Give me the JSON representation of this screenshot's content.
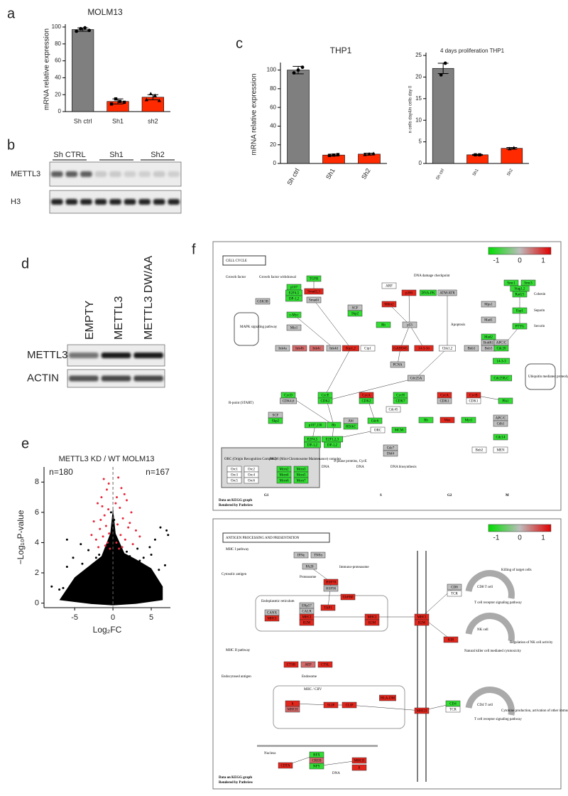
{
  "panel_labels": [
    "a",
    "b",
    "c",
    "d",
    "e",
    "f"
  ],
  "chart_data": [
    {
      "type": "bar",
      "title": "MOLM13",
      "y_label": "mRNA relative expression",
      "categories": [
        "Sh ctrl",
        "Sh1",
        "sh2"
      ],
      "values": [
        97,
        12,
        17
      ],
      "errors": [
        2,
        3,
        3
      ],
      "colors": [
        "#7f7f7f",
        "#ff2a00",
        "#ff2a00"
      ],
      "points": [
        [
          95,
          98,
          99,
          96
        ],
        [
          9,
          15,
          12,
          11
        ],
        [
          14,
          21,
          19,
          13
        ]
      ],
      "ylim": [
        0,
        100
      ],
      "yticks": [
        0,
        20,
        40,
        60,
        80,
        100
      ]
    },
    {
      "type": "bar",
      "title": "THP1",
      "y_label": "mRNA relative expression",
      "categories": [
        "Sh ctrl",
        "Sh1",
        "Sh2"
      ],
      "values": [
        100,
        9,
        10
      ],
      "errors": [
        4,
        1,
        1
      ],
      "colors": [
        "#7f7f7f",
        "#ff2a00",
        "#ff2a00"
      ],
      "points": [
        [
          97,
          100,
          103
        ],
        [
          8.5,
          9,
          9.5
        ],
        [
          9.5,
          10,
          10.5
        ]
      ],
      "ylim": [
        0,
        105
      ],
      "yticks": [
        0,
        20,
        40,
        60,
        80,
        100
      ]
    },
    {
      "type": "bar",
      "title": "4 days proliferation THP1",
      "y_label": "n cells day4/n cells day 0",
      "categories": [
        "Sh ctrl",
        "Sh1",
        "Sh2"
      ],
      "values": [
        22,
        2,
        3.5
      ],
      "errors": [
        1.2,
        0.1,
        0.2
      ],
      "colors": [
        "#7f7f7f",
        "#ff2a00",
        "#ff2a00"
      ],
      "points": [
        [
          20.5,
          23.2
        ],
        [
          2,
          2
        ],
        [
          3.4,
          3.6
        ]
      ],
      "ylim": [
        0,
        25
      ],
      "yticks": [
        0,
        5,
        10,
        15,
        20,
        25
      ]
    },
    {
      "type": "scatter",
      "title": "METTL3 KD / WT MOLM13",
      "x_label": "Log₂FC",
      "y_label": "−Log₁₀P-value",
      "annotations": [
        "n=180",
        "n=167"
      ],
      "xlim": [
        -9,
        7.5
      ],
      "ylim": [
        -0.3,
        9
      ],
      "xticks": [
        -5,
        0,
        5
      ],
      "yticks": [
        0,
        2,
        4,
        6,
        8
      ],
      "series": [
        {
          "color": "#000000",
          "x": [
            0,
            -0.5,
            0.5,
            -1,
            1,
            -1.5,
            1.5,
            -2,
            2,
            -2.5,
            2.5,
            -3,
            3,
            -3.5,
            3.5,
            -4,
            4,
            -4.5,
            4.5,
            -5,
            5,
            -6,
            6,
            -6.5,
            7,
            7.2,
            6.8,
            -7,
            -8,
            0.2,
            -0.2,
            0.1,
            -0.1,
            0.15,
            -0.25,
            0.3,
            -0.3,
            1.2,
            -1.2,
            2.2,
            -2.2,
            0.8,
            -0.8,
            1.8,
            -1.8,
            -3.2,
            3.2,
            -4.2,
            4.8,
            5.5,
            -5.2,
            6.2,
            -6,
            0.6,
            -0.6,
            1.4,
            -1.4,
            2.8,
            -2.8,
            3.8
          ],
          "values": [
            0.1,
            0.3,
            0.4,
            0.8,
            0.9,
            1.2,
            1.4,
            1.6,
            1.9,
            2,
            2.2,
            2.3,
            2.5,
            2.1,
            2.8,
            2.6,
            3,
            1.8,
            2,
            1.5,
            3.2,
            2.4,
            2.2,
            1,
            4.8,
            4.5,
            2.5,
            0.9,
            1.1,
            2.5,
            3,
            3.5,
            4.5,
            5.5,
            6,
            1.8,
            2.2,
            2.8,
            2.6,
            3.1,
            3,
            3.2,
            3.3,
            3.4,
            3.2,
            3.5,
            3.6,
            3.9,
            3.7,
            4.2,
            3,
            5,
            4.2,
            1.2,
            1.4,
            0.5,
            0.4,
            1,
            0.9,
            1.5
          ]
        },
        {
          "color": "#e8283c",
          "x": [
            -1.2,
            -0.8,
            -1.5,
            -2,
            -0.6,
            -1.1,
            -2.5,
            -0.9,
            -1.7,
            -0.5,
            -1.3,
            -2.2,
            -0.7,
            -1,
            -1.9,
            -0.4,
            -2.8,
            -1.4,
            -0.55,
            -1.6,
            0.7,
            1.1,
            0.5,
            1.8,
            0.9,
            2.4,
            1.3,
            0.6,
            2,
            3,
            1,
            1.6,
            0.45,
            2.6,
            1.2,
            0.8,
            3.5,
            1.5,
            2.2,
            0.35
          ],
          "values": [
            8.2,
            7.5,
            7,
            6.6,
            6.2,
            5.8,
            5.4,
            5.1,
            4.9,
            4.6,
            4.4,
            4.2,
            4,
            3.8,
            3.7,
            3.6,
            4.5,
            6.4,
            7.9,
            5.5,
            8.3,
            7.6,
            7,
            6.8,
            6.3,
            6,
            5.6,
            5.2,
            5,
            4.8,
            4.5,
            4.2,
            4,
            3.9,
            3.7,
            3.6,
            4.4,
            7.2,
            5.3,
            6.6
          ]
        }
      ]
    }
  ],
  "blots": [
    {
      "columns": [
        "Sh CTRL",
        "Sh1",
        "Sh2"
      ],
      "rows": [
        "METTL3",
        "H3"
      ]
    },
    {
      "columns": [
        "EMPTY",
        "METTL3",
        "METTL3 DW/AA"
      ],
      "rows": [
        "METTL3",
        "ACTIN"
      ]
    }
  ],
  "pathways": [
    {
      "title": "CELL CYCLE",
      "legend_ticks": [
        -1,
        0,
        1
      ],
      "phases": [
        "G1",
        "S",
        "G2",
        "M"
      ],
      "footer": [
        "Data on KEGG graph",
        "Rendered by Pathview"
      ],
      "nodes": [
        {
          "label": "GSK3B",
          "color": "#bfbfbf"
        },
        {
          "label": "TGFB",
          "color": "#33dd33"
        },
        {
          "label": "Smad2,3",
          "color": "#e3261c"
        },
        {
          "label": "Smad4",
          "color": "#bfbfbf"
        },
        {
          "label": "p107",
          "color": "#33dd33"
        },
        {
          "label": "E2F4,5",
          "color": "#33dd33"
        },
        {
          "label": "DP-1,2",
          "color": "#33dd33"
        },
        {
          "label": "c-Myc",
          "color": "#33dd33"
        },
        {
          "label": "Miz1",
          "color": "#bfbfbf"
        },
        {
          "label": "Ink4a",
          "color": "#bfbfbf"
        },
        {
          "label": "Ink4b",
          "color": "#d46a6a"
        },
        {
          "label": "Ink4c",
          "color": "#d46a6a"
        },
        {
          "label": "Ink4d",
          "color": "#bfbfbf"
        },
        {
          "label": "Kip1,2",
          "color": "#e3261c"
        },
        {
          "label": "Cip1",
          "color": "#ffffff"
        },
        {
          "label": "SCF",
          "color": "#bfbfbf"
        },
        {
          "label": "Skp2",
          "color": "#33dd33"
        },
        {
          "label": "ARF",
          "color": "#ffffff"
        },
        {
          "label": "Mdm2",
          "color": "#e3261c"
        },
        {
          "label": "p300",
          "color": "#e3261c"
        },
        {
          "label": "DNA-PK",
          "color": "#33dd33"
        },
        {
          "label": "ATM/ATR",
          "color": "#bfbfbf"
        },
        {
          "label": "Rb",
          "color": "#33dd33"
        },
        {
          "label": "p53",
          "color": "#bfbfbf"
        },
        {
          "label": "GADD45",
          "color": "#e3261c"
        },
        {
          "label": "14-3-3σ",
          "color": "#e3261c"
        },
        {
          "label": "Chk1,2",
          "color": "#ffffff"
        },
        {
          "label": "Mps1",
          "color": "#bfbfbf"
        },
        {
          "label": "Mad1",
          "color": "#bfbfbf"
        },
        {
          "label": "Mad2",
          "color": "#33dd33"
        },
        {
          "label": "BubR1",
          "color": "#bfbfbf"
        },
        {
          "label": "Bub3",
          "color": "#bfbfbf"
        },
        {
          "label": "Bub1",
          "color": "#bfbfbf"
        },
        {
          "label": "Smc1",
          "color": "#33dd33"
        },
        {
          "label": "Smc3",
          "color": "#33dd33"
        },
        {
          "label": "Stag1,2",
          "color": "#33dd33"
        },
        {
          "label": "Rad21",
          "color": "#33dd33"
        },
        {
          "label": "Esp1",
          "color": "#33dd33"
        },
        {
          "label": "PTTG",
          "color": "#33dd33"
        },
        {
          "label": "APC/C",
          "color": "#bfbfbf"
        },
        {
          "label": "Cdc20",
          "color": "#33dd33"
        },
        {
          "label": "PCNA",
          "color": "#bfbfbf"
        },
        {
          "label": "Cdc25A",
          "color": "#bfbfbf"
        },
        {
          "label": "14-3-3",
          "color": "#33dd33"
        },
        {
          "label": "Cdc25B,C",
          "color": "#33dd33"
        },
        {
          "label": "CycD",
          "color": "#33dd33"
        },
        {
          "label": "CDK4,6",
          "color": "#bfbfbf"
        },
        {
          "label": "CycE",
          "color": "#33dd33"
        },
        {
          "label": "CDK2",
          "color": "#33dd33"
        },
        {
          "label": "CycA",
          "color": "#e3261c"
        },
        {
          "label": "CDK2",
          "color": "#33dd33"
        },
        {
          "label": "CycH",
          "color": "#33dd33"
        },
        {
          "label": "CDK7",
          "color": "#33dd33"
        },
        {
          "label": "CycA",
          "color": "#e3261c"
        },
        {
          "label": "CDK1",
          "color": "#bfbfbf"
        },
        {
          "label": "CycB",
          "color": "#e3261c"
        },
        {
          "label": "CDK1",
          "color": "#ffffff"
        },
        {
          "label": "Plk1",
          "color": "#33dd33"
        },
        {
          "label": "SCF",
          "color": "#bfbfbf"
        },
        {
          "label": "Skp2",
          "color": "#33dd33"
        },
        {
          "label": "p107,130",
          "color": "#33dd33"
        },
        {
          "label": "Rb",
          "color": "#33dd33"
        },
        {
          "label": "Abl",
          "color": "#bfbfbf"
        },
        {
          "label": "HDAC",
          "color": "#33dd33"
        },
        {
          "label": "E2F4,5",
          "color": "#33dd33"
        },
        {
          "label": "DP-1,2",
          "color": "#33dd33"
        },
        {
          "label": "E2F1,2,3",
          "color": "#33dd33"
        },
        {
          "label": "DP-1,2",
          "color": "#33dd33"
        },
        {
          "label": "Cdc6",
          "color": "#33dd33"
        },
        {
          "label": "Cdc45",
          "color": "#ffffff"
        },
        {
          "label": "ORC",
          "color": "#ffffff"
        },
        {
          "label": "MCM",
          "color": "#33dd33"
        },
        {
          "label": "Cdc7",
          "color": "#bfbfbf"
        },
        {
          "label": "Dbf4",
          "color": "#bfbfbf"
        },
        {
          "label": "Rb",
          "color": "#33dd33"
        },
        {
          "label": "Wee",
          "color": "#e3261c"
        },
        {
          "label": "Myt1",
          "color": "#33dd33"
        },
        {
          "label": "APC/C",
          "color": "#bfbfbf"
        },
        {
          "label": "Cdh1",
          "color": "#bfbfbf"
        },
        {
          "label": "Cdc14",
          "color": "#33dd33"
        },
        {
          "label": "Bub2",
          "color": "#ffffff"
        },
        {
          "label": "MEN",
          "color": "#ffffff"
        },
        {
          "label": "Orc1",
          "color": "#ffffff"
        },
        {
          "label": "Orc2",
          "color": "#ffffff"
        },
        {
          "label": "Orc3",
          "color": "#ffffff"
        },
        {
          "label": "Orc4",
          "color": "#ffffff"
        },
        {
          "label": "Orc5",
          "color": "#ffffff"
        },
        {
          "label": "Orc6",
          "color": "#ffffff"
        },
        {
          "label": "Mcm2",
          "color": "#33dd33"
        },
        {
          "label": "Mcm3",
          "color": "#33dd33"
        },
        {
          "label": "Mcm4",
          "color": "#33dd33"
        },
        {
          "label": "Mcm5",
          "color": "#33dd33"
        },
        {
          "label": "Mcm6",
          "color": "#33dd33"
        },
        {
          "label": "Mcm7",
          "color": "#33dd33"
        }
      ],
      "texts": [
        "Growth factor",
        "Growth factor withdrawal",
        "DNA damage checkpoint",
        "MAPK signaling pathway",
        "Apoptosis",
        "Ubiquitin mediated proteolysis",
        "R-point (START)",
        "S-phase proteins, CycE",
        "DNA biosynthesis",
        "DNA",
        "DNA",
        "Cohesin",
        "Separin",
        "Securin",
        "ORC (Origin Recognition Complex)",
        "MCM (Mini-Chromosome Maintenance) complex"
      ]
    },
    {
      "title": "ANTIGEN PROCESSING AND PRESENTATION",
      "legend_ticks": [
        -1,
        0,
        1
      ],
      "footer": [
        "Data on KEGG graph",
        "Rendered by Pathview"
      ],
      "nodes": [
        {
          "label": "IFNγ",
          "color": "#bfbfbf"
        },
        {
          "label": "TNFα",
          "color": "#bfbfbf"
        },
        {
          "label": "PA28",
          "color": "#bfbfbf"
        },
        {
          "label": "HSP70",
          "color": "#e3261c"
        },
        {
          "label": "HSP90",
          "color": "#bfbfbf"
        },
        {
          "label": "TAPBP",
          "color": "#e3261c"
        },
        {
          "label": "ERp57",
          "color": "#bfbfbf"
        },
        {
          "label": "CALR",
          "color": "#bfbfbf"
        },
        {
          "label": "MHCI",
          "color": "#e3261c"
        },
        {
          "label": "B2M",
          "color": "#e3261c"
        },
        {
          "label": "CANX",
          "color": "#bfbfbf"
        },
        {
          "label": "MHCI",
          "color": "#e3261c"
        },
        {
          "label": "TAP1",
          "color": "#e3261c"
        },
        {
          "label": "MHCI",
          "color": "#e3261c"
        },
        {
          "label": "B2M",
          "color": "#e3261c"
        },
        {
          "label": "MHCI",
          "color": "#e3261c"
        },
        {
          "label": "B2M",
          "color": "#e3261c"
        },
        {
          "label": "CD8",
          "color": "#bfbfbf"
        },
        {
          "label": "TCR",
          "color": "#ffffff"
        },
        {
          "label": "KIR",
          "color": "#e3261c"
        },
        {
          "label": "CTSB",
          "color": "#e3261c"
        },
        {
          "label": "AEP",
          "color": "#d46a6a"
        },
        {
          "label": "CTSL",
          "color": "#e3261c"
        },
        {
          "label": "Ii",
          "color": "#e3261c"
        },
        {
          "label": "MHCII",
          "color": "#d46a6a"
        },
        {
          "label": "SLIP",
          "color": "#e3261c"
        },
        {
          "label": "CLIP",
          "color": "#e3261c"
        },
        {
          "label": "HLA-DM",
          "color": "#e3261c"
        },
        {
          "label": "MHCII",
          "color": "#e3261c"
        },
        {
          "label": "CD4",
          "color": "#33dd33"
        },
        {
          "label": "TCR",
          "color": "#ffffff"
        },
        {
          "label": "CIITA",
          "color": "#e3261c"
        },
        {
          "label": "RFX",
          "color": "#33dd33"
        },
        {
          "label": "CREB",
          "color": "#d46a6a"
        },
        {
          "label": "NFY",
          "color": "#33dd33"
        },
        {
          "label": "MHCII",
          "color": "#e3261c"
        },
        {
          "label": "Ii",
          "color": "#e3261c"
        }
      ],
      "texts": [
        "MHC I pathway",
        "Cytosolic antigen",
        "Proteasome",
        "Immuno-proteasome",
        "Endoplasmic reticulum",
        "CD8 T cell",
        "T cell receptor signaling pathway",
        "Killing of target cells",
        "NK cell",
        "Natural killer cell mediated cytotoxicity",
        "Regulation of NK cell activity",
        "MHC II pathway",
        "Endosome",
        "Endocytosed antigen",
        "MIIC / CIIV",
        "CD4 T cell",
        "T cell receptor signaling pathway",
        "Cytokine production, activation of other immune cells",
        "Nucleus",
        "DNA"
      ]
    }
  ]
}
